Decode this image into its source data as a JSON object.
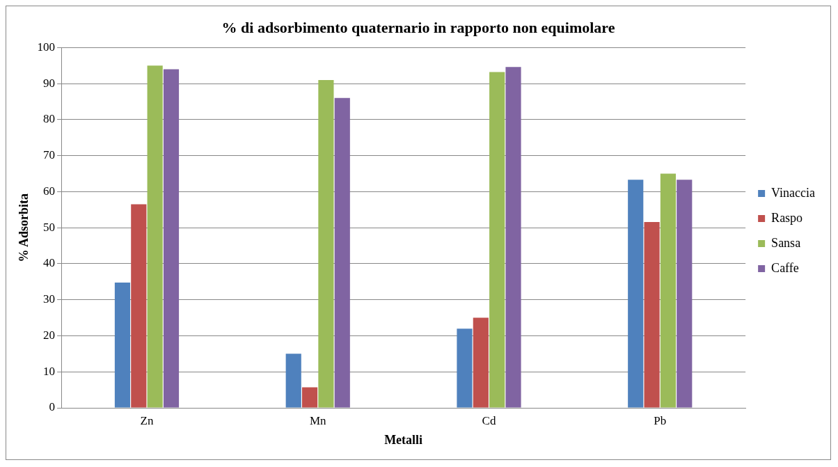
{
  "chart_data": {
    "type": "bar",
    "title": "% di adsorbimento quaternario in rapporto non equimolare",
    "xlabel": "Metalli",
    "ylabel": "% Adsorbita",
    "categories": [
      "Zn",
      "Mn",
      "Cd",
      "Pb"
    ],
    "series": [
      {
        "name": "Vinaccia",
        "color": "#4f81bd",
        "values": [
          34.8,
          15,
          22,
          63.3
        ]
      },
      {
        "name": "Raspo",
        "color": "#c0504d",
        "values": [
          56.5,
          5.7,
          25,
          51.6
        ]
      },
      {
        "name": "Sansa",
        "color": "#9bbb59",
        "values": [
          95,
          91,
          93.2,
          65
        ]
      },
      {
        "name": "Caffe",
        "color": "#8064a2",
        "values": [
          94,
          86,
          94.6,
          63.3
        ]
      }
    ],
    "ylim": [
      0,
      100
    ],
    "yticks": [
      0,
      10,
      20,
      30,
      40,
      50,
      60,
      70,
      80,
      90,
      100
    ],
    "grid": "y",
    "legend": "right"
  }
}
